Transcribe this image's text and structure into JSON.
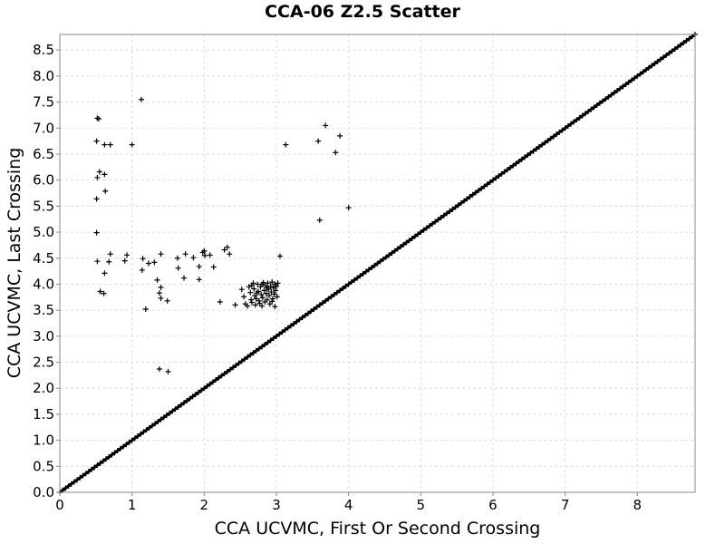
{
  "chart_data": {
    "type": "scatter",
    "title": "CCA-06 Z2.5 Scatter",
    "xlabel": "CCA UCVMC, First Or Second Crossing",
    "ylabel": "CCA UCVMC, Last Crossing",
    "xlim": [
      0,
      8.8
    ],
    "ylim": [
      0,
      8.8
    ],
    "x_ticks": [
      0,
      1,
      2,
      3,
      4,
      5,
      6,
      7,
      8
    ],
    "y_ticks": [
      0.0,
      0.5,
      1.0,
      1.5,
      2.0,
      2.5,
      3.0,
      3.5,
      4.0,
      4.5,
      5.0,
      5.5,
      6.0,
      6.5,
      7.0,
      7.5,
      8.0,
      8.5
    ],
    "grid": true,
    "diagonal": {
      "from": [
        0,
        0
      ],
      "to": [
        8.8,
        8.8
      ],
      "note": "dense points along y = x"
    },
    "off_diagonal_points": [
      [
        1.13,
        7.55
      ],
      [
        0.52,
        7.19
      ],
      [
        0.54,
        7.18
      ],
      [
        0.51,
        6.75
      ],
      [
        0.62,
        6.68
      ],
      [
        0.7,
        6.68
      ],
      [
        1.0,
        6.68
      ],
      [
        0.55,
        6.16
      ],
      [
        0.62,
        6.11
      ],
      [
        0.52,
        6.05
      ],
      [
        0.63,
        5.79
      ],
      [
        0.51,
        5.64
      ],
      [
        0.51,
        4.99
      ],
      [
        0.52,
        4.44
      ],
      [
        0.7,
        4.58
      ],
      [
        0.68,
        4.43
      ],
      [
        0.62,
        4.21
      ],
      [
        0.56,
        3.86
      ],
      [
        0.61,
        3.82
      ],
      [
        0.93,
        4.56
      ],
      [
        0.9,
        4.45
      ],
      [
        1.15,
        4.49
      ],
      [
        1.14,
        4.27
      ],
      [
        1.23,
        4.4
      ],
      [
        1.31,
        4.42
      ],
      [
        1.4,
        4.58
      ],
      [
        1.35,
        4.08
      ],
      [
        1.4,
        3.94
      ],
      [
        1.38,
        3.83
      ],
      [
        1.4,
        3.73
      ],
      [
        1.49,
        3.68
      ],
      [
        1.19,
        3.52
      ],
      [
        1.38,
        2.37
      ],
      [
        1.5,
        2.32
      ],
      [
        1.63,
        4.5
      ],
      [
        1.64,
        4.31
      ],
      [
        1.74,
        4.58
      ],
      [
        1.72,
        4.12
      ],
      [
        1.85,
        4.51
      ],
      [
        1.93,
        4.34
      ],
      [
        1.93,
        4.09
      ],
      [
        1.98,
        4.61
      ],
      [
        2.01,
        4.55
      ],
      [
        2.0,
        4.64
      ],
      [
        2.08,
        4.56
      ],
      [
        2.13,
        4.33
      ],
      [
        2.28,
        4.66
      ],
      [
        2.32,
        4.71
      ],
      [
        2.35,
        4.58
      ],
      [
        2.22,
        3.66
      ],
      [
        2.43,
        3.6
      ],
      [
        2.52,
        3.9
      ],
      [
        2.55,
        3.76
      ],
      [
        2.57,
        3.62
      ],
      [
        2.6,
        3.58
      ],
      [
        2.62,
        3.95
      ],
      [
        2.64,
        3.84
      ],
      [
        2.65,
        3.7
      ],
      [
        2.66,
        3.65
      ],
      [
        2.68,
        4.02
      ],
      [
        2.69,
        3.91
      ],
      [
        2.7,
        3.78
      ],
      [
        2.71,
        3.6
      ],
      [
        2.72,
        3.72
      ],
      [
        2.74,
        4.0
      ],
      [
        2.75,
        3.86
      ],
      [
        2.76,
        3.68
      ],
      [
        2.78,
        3.95
      ],
      [
        2.79,
        3.8
      ],
      [
        2.8,
        3.58
      ],
      [
        2.81,
        3.74
      ],
      [
        2.82,
        4.03
      ],
      [
        2.83,
        3.88
      ],
      [
        2.84,
        3.66
      ],
      [
        2.85,
        3.97
      ],
      [
        2.86,
        3.82
      ],
      [
        2.87,
        3.7
      ],
      [
        2.88,
        4.02
      ],
      [
        2.89,
        3.9
      ],
      [
        2.9,
        3.78
      ],
      [
        2.91,
        3.62
      ],
      [
        2.92,
        3.96
      ],
      [
        2.93,
        3.85
      ],
      [
        2.94,
        4.04
      ],
      [
        2.95,
        3.72
      ],
      [
        2.96,
        3.93
      ],
      [
        2.97,
        3.81
      ],
      [
        2.98,
        4.0
      ],
      [
        2.99,
        3.88
      ],
      [
        3.0,
        3.96
      ],
      [
        3.01,
        3.76
      ],
      [
        3.02,
        4.02
      ],
      [
        2.98,
        3.57
      ],
      [
        2.73,
        3.83
      ],
      [
        2.77,
        3.63
      ],
      [
        2.87,
        3.93
      ],
      [
        2.94,
        3.67
      ],
      [
        2.66,
        3.98
      ],
      [
        2.8,
        4.0
      ],
      [
        3.05,
        4.54
      ],
      [
        3.13,
        6.68
      ],
      [
        3.58,
        6.75
      ],
      [
        3.68,
        7.05
      ],
      [
        3.82,
        6.53
      ],
      [
        3.88,
        6.85
      ],
      [
        3.6,
        5.23
      ],
      [
        4.0,
        5.47
      ]
    ]
  }
}
